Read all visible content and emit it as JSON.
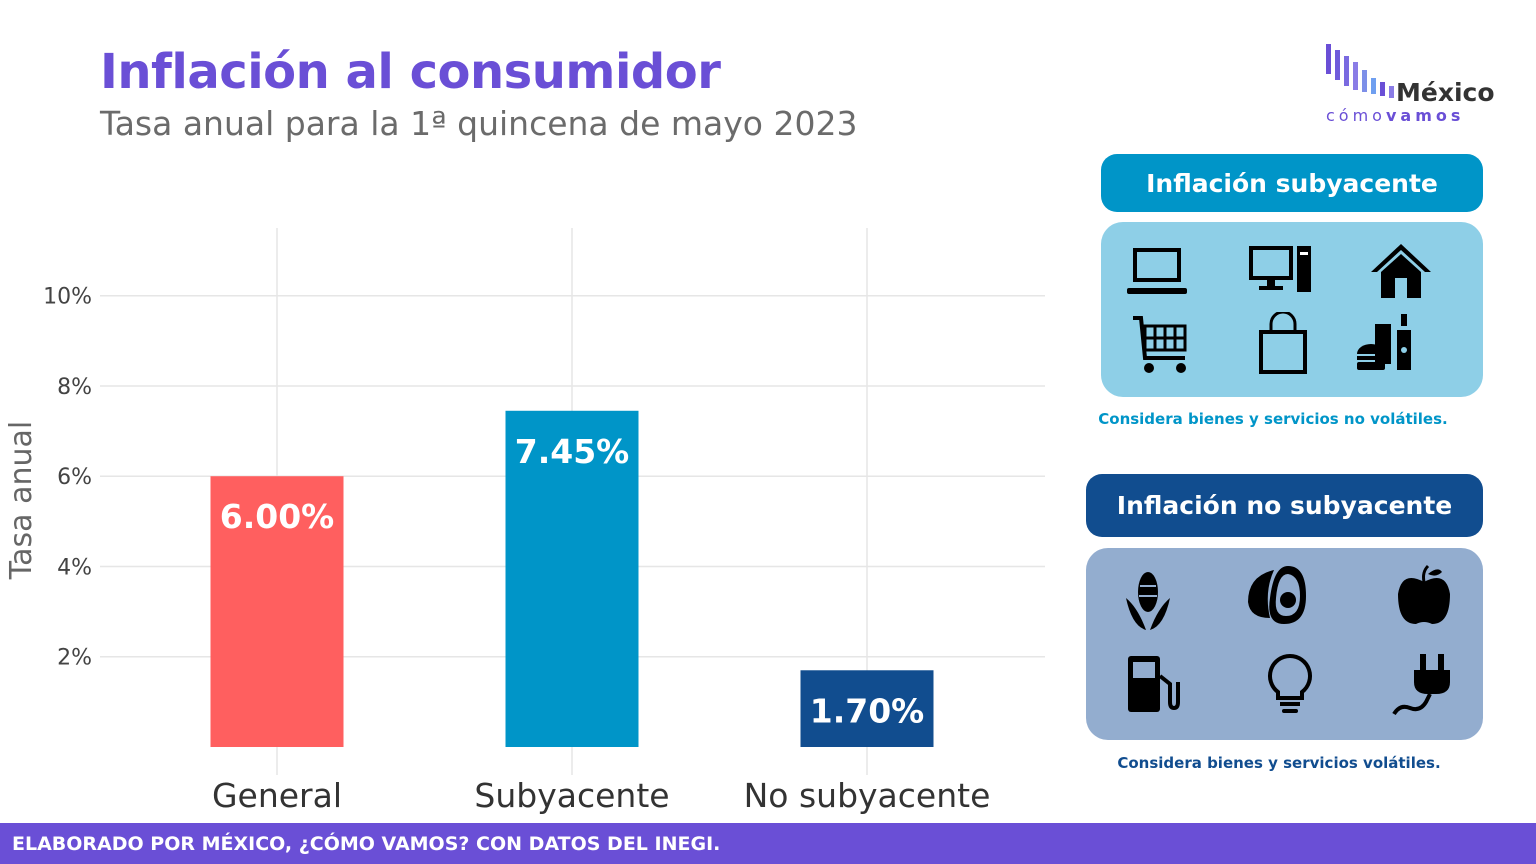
{
  "header": {
    "title": "Inflación al consumidor",
    "subtitle": "Tasa anual para la 1ª quincena de mayo 2023"
  },
  "logo": {
    "word": "México",
    "sub_light": "cómo",
    "sub_bold": "vamos"
  },
  "chart_data": {
    "type": "bar",
    "categories": [
      "General",
      "Subyacente",
      "No subyacente"
    ],
    "values": [
      6.0,
      7.45,
      1.7
    ],
    "value_labels": [
      "6.00%",
      "7.45%",
      "1.70%"
    ],
    "colors": [
      "#ff5f5f",
      "#0095c8",
      "#114d8f"
    ],
    "ylabel": "Tasa anual",
    "xlabel": "",
    "yticks": [
      "2%",
      "4%",
      "6%",
      "8%",
      "10%"
    ],
    "ytick_values": [
      2,
      4,
      6,
      8,
      10
    ],
    "ylim": [
      0,
      11.5
    ],
    "grid": true
  },
  "panels": {
    "core": {
      "title": "Inflación subyacente",
      "caption": "Considera bienes y servicios no volátiles.",
      "header_color": "#0095c8",
      "box_color": "#8ecfe7",
      "caption_color": "#0095c8",
      "icons": [
        "laptop-icon",
        "desktop-computer-icon",
        "house-icon",
        "shopping-cart-icon",
        "shopping-bag-icon",
        "fast-food-icon"
      ]
    },
    "noncore": {
      "title": "Inflación no subyacente",
      "caption": "Considera bienes y servicios volátiles.",
      "header_color": "#114d8f",
      "box_color": "#93adcf",
      "caption_color": "#114d8f",
      "icons": [
        "corn-icon",
        "avocado-icon",
        "apple-icon",
        "fuel-pump-icon",
        "light-bulb-icon",
        "power-plug-icon"
      ]
    }
  },
  "footer": {
    "text": "ELABORADO POR MÉXICO, ¿CÓMO VAMOS? CON DATOS DEL INEGI."
  }
}
